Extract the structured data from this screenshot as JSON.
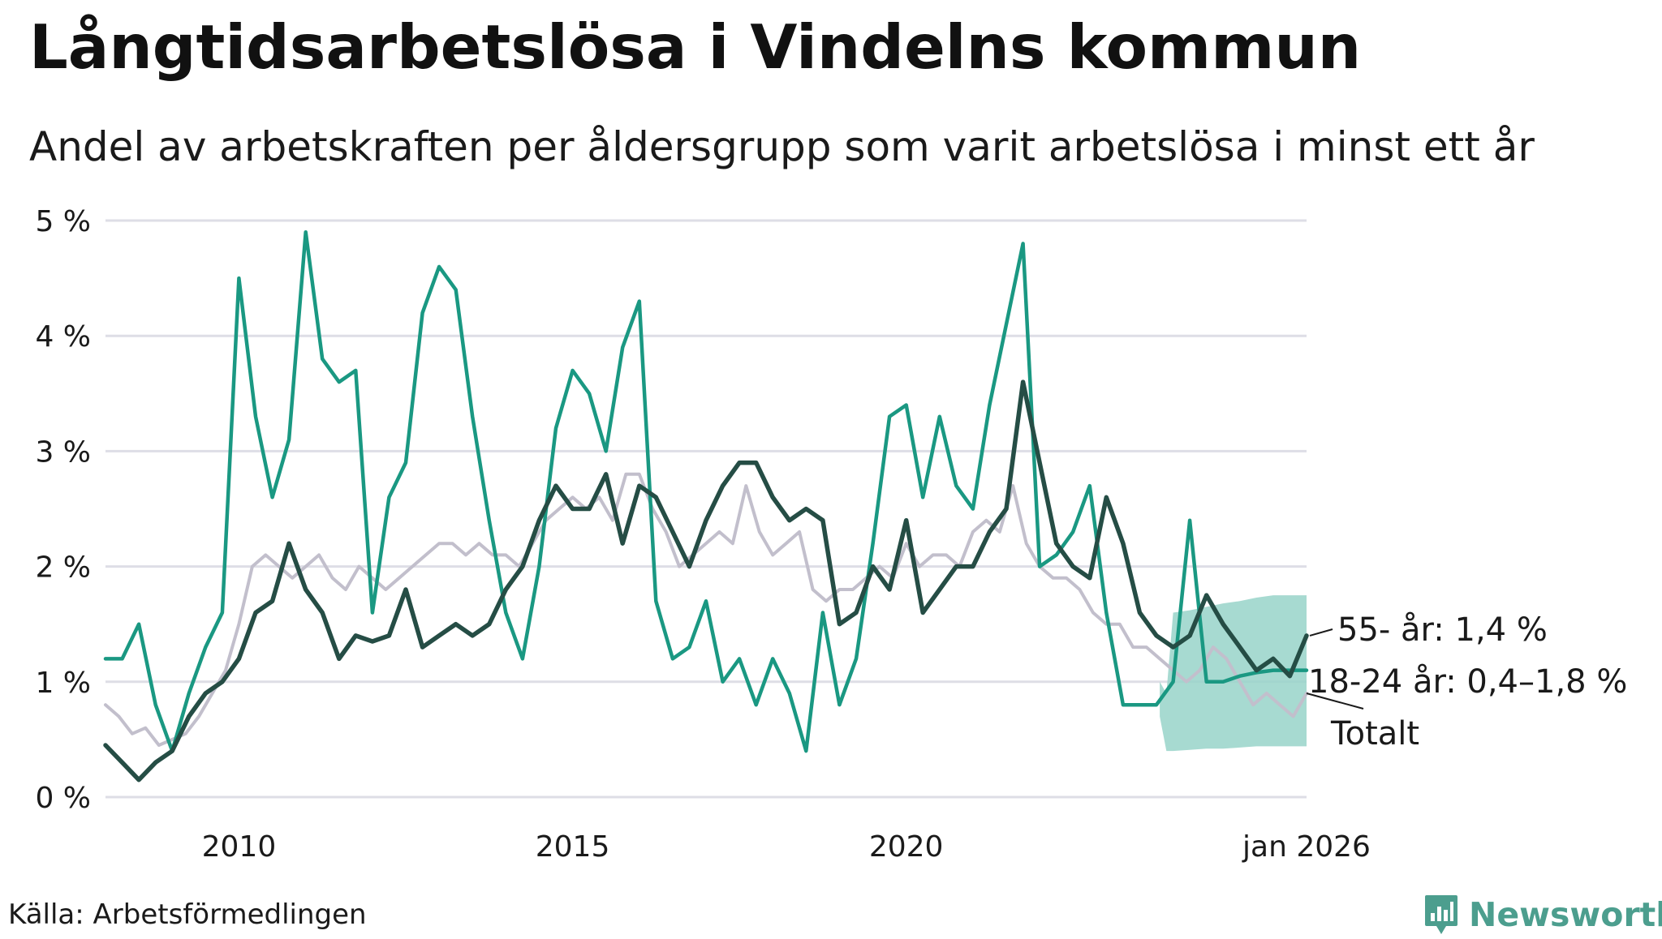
{
  "title": "Långtidsarbetslösa i Vindelns kommun",
  "subtitle": "Andel av arbetskraften per åldersgrupp som varit arbetslösa i minst ett år",
  "source": "Källa: Arbetsförmedlingen",
  "brand": "Newsworthy",
  "colors": {
    "young": "#1a9882",
    "older": "#254d45",
    "total": "#c2bfcc",
    "band": "#98d4c9",
    "grid": "#dedee6",
    "brand": "#4c9e8e"
  },
  "chart_data": {
    "type": "line",
    "ylim": [
      0,
      5
    ],
    "xlim": [
      2008.0,
      2026.0
    ],
    "y_ticks": [
      {
        "value": 0,
        "label": "0 %"
      },
      {
        "value": 1,
        "label": "1 %"
      },
      {
        "value": 2,
        "label": "2 %"
      },
      {
        "value": 3,
        "label": "3 %"
      },
      {
        "value": 4,
        "label": "4 %"
      },
      {
        "value": 5,
        "label": "5 %"
      }
    ],
    "x_ticks": [
      {
        "value": 2010,
        "label": "2010"
      },
      {
        "value": 2015,
        "label": "2015"
      },
      {
        "value": 2020,
        "label": "2020"
      },
      {
        "value": 2026.0,
        "label": "jan 2026"
      }
    ],
    "series": [
      {
        "name": "Totalt",
        "key": "total",
        "label": "Totalt",
        "x": [
          2008.0,
          2008.2,
          2008.4,
          2008.6,
          2008.8,
          2009.0,
          2009.2,
          2009.4,
          2009.6,
          2009.8,
          2010.0,
          2010.2,
          2010.4,
          2010.6,
          2010.8,
          2011.0,
          2011.2,
          2011.4,
          2011.6,
          2011.8,
          2012.0,
          2012.2,
          2012.4,
          2012.6,
          2012.8,
          2013.0,
          2013.2,
          2013.4,
          2013.6,
          2013.8,
          2014.0,
          2014.2,
          2014.4,
          2014.6,
          2014.8,
          2015.0,
          2015.2,
          2015.4,
          2015.6,
          2015.8,
          2016.0,
          2016.2,
          2016.4,
          2016.6,
          2016.8,
          2017.0,
          2017.2,
          2017.4,
          2017.6,
          2017.8,
          2018.0,
          2018.2,
          2018.4,
          2018.6,
          2018.8,
          2019.0,
          2019.2,
          2019.4,
          2019.6,
          2019.8,
          2020.0,
          2020.2,
          2020.4,
          2020.6,
          2020.8,
          2021.0,
          2021.2,
          2021.4,
          2021.6,
          2021.8,
          2022.0,
          2022.2,
          2022.4,
          2022.6,
          2022.8,
          2023.0,
          2023.2,
          2023.4,
          2023.6,
          2023.8,
          2024.0,
          2024.2,
          2024.4,
          2024.6,
          2024.8,
          2025.0,
          2025.2,
          2025.4,
          2025.6,
          2025.8,
          2026.0
        ],
        "values": [
          0.8,
          0.7,
          0.55,
          0.6,
          0.45,
          0.5,
          0.55,
          0.7,
          0.9,
          1.1,
          1.5,
          2.0,
          2.1,
          2.0,
          1.9,
          2.0,
          2.1,
          1.9,
          1.8,
          2.0,
          1.9,
          1.8,
          1.9,
          2.0,
          2.1,
          2.2,
          2.2,
          2.1,
          2.2,
          2.1,
          2.1,
          2.0,
          2.2,
          2.4,
          2.5,
          2.6,
          2.5,
          2.6,
          2.4,
          2.8,
          2.8,
          2.5,
          2.3,
          2.0,
          2.1,
          2.2,
          2.3,
          2.2,
          2.7,
          2.3,
          2.1,
          2.2,
          2.3,
          1.8,
          1.7,
          1.8,
          1.8,
          1.9,
          2.0,
          1.9,
          2.2,
          2.0,
          2.1,
          2.1,
          2.0,
          2.3,
          2.4,
          2.3,
          2.7,
          2.2,
          2.0,
          1.9,
          1.9,
          1.8,
          1.6,
          1.5,
          1.5,
          1.3,
          1.3,
          1.2,
          1.1,
          1.0,
          1.1,
          1.3,
          1.2,
          1.0,
          0.8,
          0.9,
          0.8,
          0.7,
          0.9
        ]
      },
      {
        "name": "18-24 år",
        "key": "young",
        "label": "18-24 år: 0,4–1,8 %",
        "x": [
          2008.0,
          2008.25,
          2008.5,
          2008.75,
          2009.0,
          2009.25,
          2009.5,
          2009.75,
          2010.0,
          2010.25,
          2010.5,
          2010.75,
          2011.0,
          2011.25,
          2011.5,
          2011.75,
          2012.0,
          2012.25,
          2012.5,
          2012.75,
          2013.0,
          2013.25,
          2013.5,
          2013.75,
          2014.0,
          2014.25,
          2014.5,
          2014.75,
          2015.0,
          2015.25,
          2015.5,
          2015.75,
          2016.0,
          2016.25,
          2016.5,
          2016.75,
          2017.0,
          2017.25,
          2017.5,
          2017.75,
          2018.0,
          2018.25,
          2018.5,
          2018.75,
          2019.0,
          2019.25,
          2019.5,
          2019.75,
          2020.0,
          2020.25,
          2020.5,
          2020.75,
          2021.0,
          2021.25,
          2021.5,
          2021.75,
          2022.0,
          2022.25,
          2022.5,
          2022.75,
          2023.0,
          2023.25,
          2023.5,
          2023.75,
          2024.0,
          2024.25,
          2024.5,
          2024.75,
          2025.0,
          2025.25,
          2025.5,
          2025.75,
          2026.0
        ],
        "values": [
          1.2,
          1.2,
          1.5,
          0.8,
          0.4,
          0.9,
          1.3,
          1.6,
          4.5,
          3.3,
          2.6,
          3.1,
          4.9,
          3.8,
          3.6,
          3.7,
          1.6,
          2.6,
          2.9,
          4.2,
          4.6,
          4.4,
          3.3,
          2.4,
          1.6,
          1.2,
          2.0,
          3.2,
          3.7,
          3.5,
          3.0,
          3.9,
          4.3,
          1.7,
          1.2,
          1.3,
          1.7,
          1.0,
          1.2,
          0.8,
          1.2,
          0.9,
          0.4,
          1.6,
          0.8,
          1.2,
          2.2,
          3.3,
          3.4,
          2.6,
          3.3,
          2.7,
          2.5,
          3.4,
          4.1,
          4.8,
          2.0,
          2.1,
          2.3,
          2.7,
          1.6,
          0.8,
          0.8,
          0.8,
          1.0,
          2.4,
          1.0,
          1.0,
          1.05,
          1.08,
          1.1,
          1.1,
          1.1
        ]
      },
      {
        "name": "55- år",
        "key": "older",
        "label": "55- år: 1,4 %",
        "x": [
          2008.0,
          2008.25,
          2008.5,
          2008.75,
          2009.0,
          2009.25,
          2009.5,
          2009.75,
          2010.0,
          2010.25,
          2010.5,
          2010.75,
          2011.0,
          2011.25,
          2011.5,
          2011.75,
          2012.0,
          2012.25,
          2012.5,
          2012.75,
          2013.0,
          2013.25,
          2013.5,
          2013.75,
          2014.0,
          2014.25,
          2014.5,
          2014.75,
          2015.0,
          2015.25,
          2015.5,
          2015.75,
          2016.0,
          2016.25,
          2016.5,
          2016.75,
          2017.0,
          2017.25,
          2017.5,
          2017.75,
          2018.0,
          2018.25,
          2018.5,
          2018.75,
          2019.0,
          2019.25,
          2019.5,
          2019.75,
          2020.0,
          2020.25,
          2020.5,
          2020.75,
          2021.0,
          2021.25,
          2021.5,
          2021.75,
          2022.0,
          2022.25,
          2022.5,
          2022.75,
          2023.0,
          2023.25,
          2023.5,
          2023.75,
          2024.0,
          2024.25,
          2024.5,
          2024.75,
          2025.0,
          2025.25,
          2025.5,
          2025.75,
          2026.0
        ],
        "values": [
          0.45,
          0.3,
          0.15,
          0.3,
          0.4,
          0.7,
          0.9,
          1.0,
          1.2,
          1.6,
          1.7,
          2.2,
          1.8,
          1.6,
          1.2,
          1.4,
          1.35,
          1.4,
          1.8,
          1.3,
          1.4,
          1.5,
          1.4,
          1.5,
          1.8,
          2.0,
          2.4,
          2.7,
          2.5,
          2.5,
          2.8,
          2.2,
          2.7,
          2.6,
          2.3,
          2.0,
          2.4,
          2.7,
          2.9,
          2.9,
          2.6,
          2.4,
          2.5,
          2.4,
          1.5,
          1.6,
          2.0,
          1.8,
          2.4,
          1.6,
          1.8,
          2.0,
          2.0,
          2.3,
          2.5,
          3.6,
          2.9,
          2.2,
          2.0,
          1.9,
          2.6,
          2.2,
          1.6,
          1.4,
          1.3,
          1.4,
          1.75,
          1.5,
          1.3,
          1.1,
          1.2,
          1.05,
          1.4
        ]
      }
    ],
    "band": {
      "name": "18-24 år osäkerhetsintervall",
      "x": [
        2023.8,
        2023.9,
        2024.0,
        2024.25,
        2024.5,
        2024.75,
        2025.0,
        2025.25,
        2025.5,
        2025.75,
        2026.0
      ],
      "upper": [
        1.0,
        0.9,
        1.6,
        1.62,
        1.65,
        1.68,
        1.7,
        1.73,
        1.75,
        1.75,
        1.75
      ],
      "lower": [
        0.7,
        0.4,
        0.4,
        0.41,
        0.42,
        0.42,
        0.43,
        0.44,
        0.44,
        0.44,
        0.44
      ]
    }
  }
}
